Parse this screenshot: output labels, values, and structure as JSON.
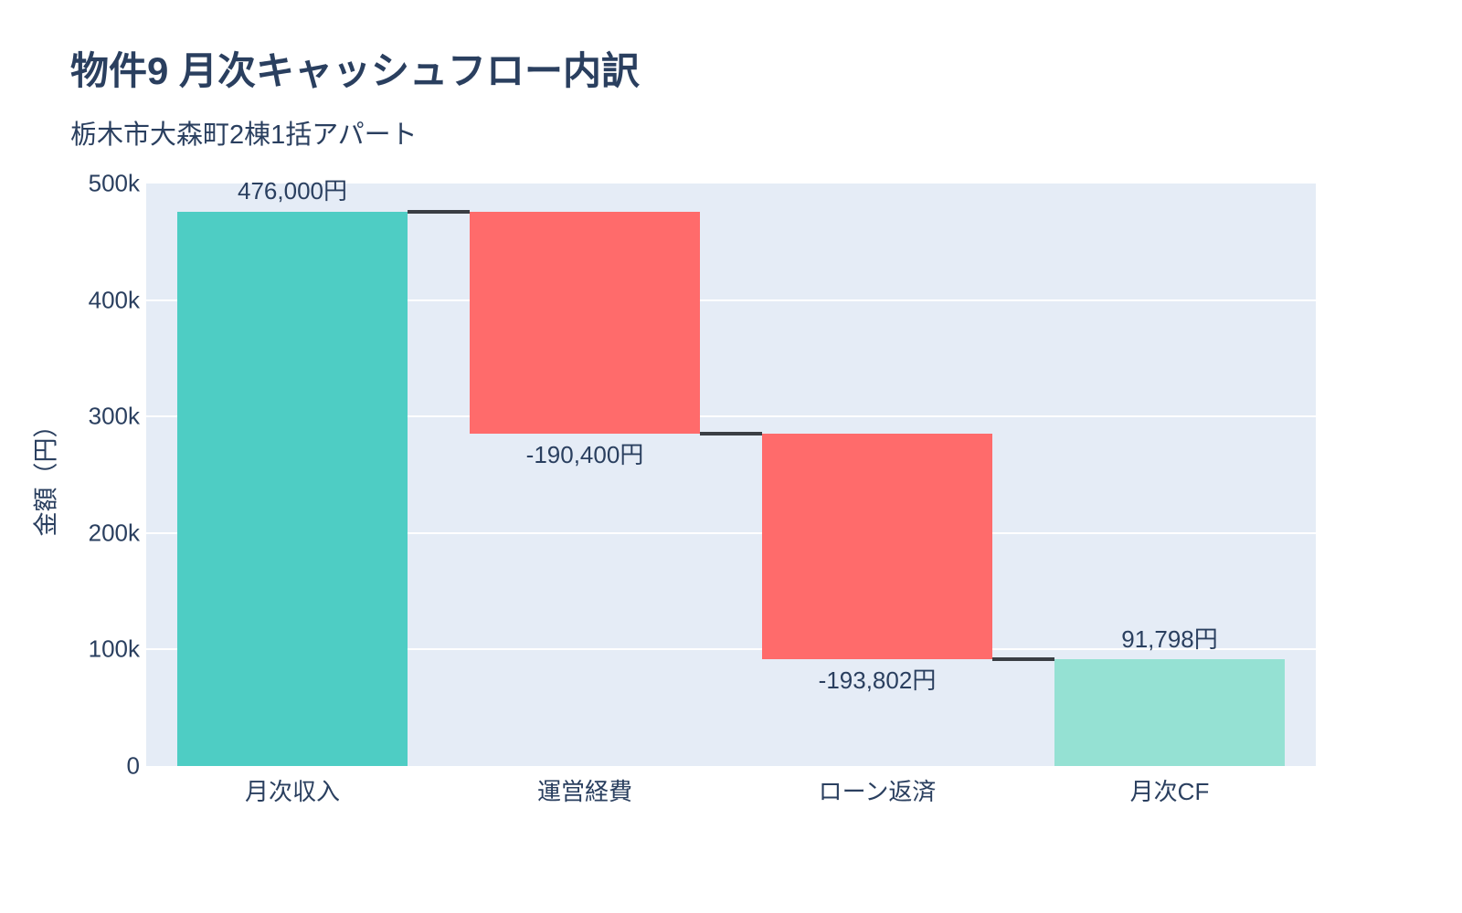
{
  "header": {
    "title": "物件9 月次キャッシュフロー内訳",
    "subtitle": "栃木市大森町2棟1括アパート"
  },
  "chart_data": {
    "type": "bar",
    "subtype": "waterfall",
    "title": "物件9 月次キャッシュフロー内訳",
    "subtitle": "栃木市大森町2棟1括アパート",
    "categories": [
      "月次収入",
      "運営経費",
      "ローン返済",
      "月次CF"
    ],
    "values": [
      476000,
      -190400,
      -193802,
      91798
    ],
    "measures": [
      "relative",
      "relative",
      "relative",
      "total"
    ],
    "value_labels": [
      "476,000円",
      "-190,400円",
      "-193,802円",
      "91,798円"
    ],
    "cumulative": [
      476000,
      285600,
      91798,
      91798
    ],
    "xlabel": "",
    "ylabel": "金額（円）",
    "ylim": [
      0,
      500000
    ],
    "yticks": [
      {
        "value": 0,
        "label": "0"
      },
      {
        "value": 100000,
        "label": "100k"
      },
      {
        "value": 200000,
        "label": "200k"
      },
      {
        "value": 300000,
        "label": "300k"
      },
      {
        "value": 400000,
        "label": "400k"
      },
      {
        "value": 500000,
        "label": "500k"
      }
    ],
    "grid": true,
    "legend": "none",
    "colors": {
      "increasing": "#4ECDC4",
      "decreasing": "#FF6B6B",
      "total": "#95E1D3",
      "connector": "#3A3E44",
      "plot_background": "#E5ECF6",
      "gridline": "#FFFFFF",
      "text": "#2A3F5F",
      "page_background": "#FFFFFF"
    }
  }
}
